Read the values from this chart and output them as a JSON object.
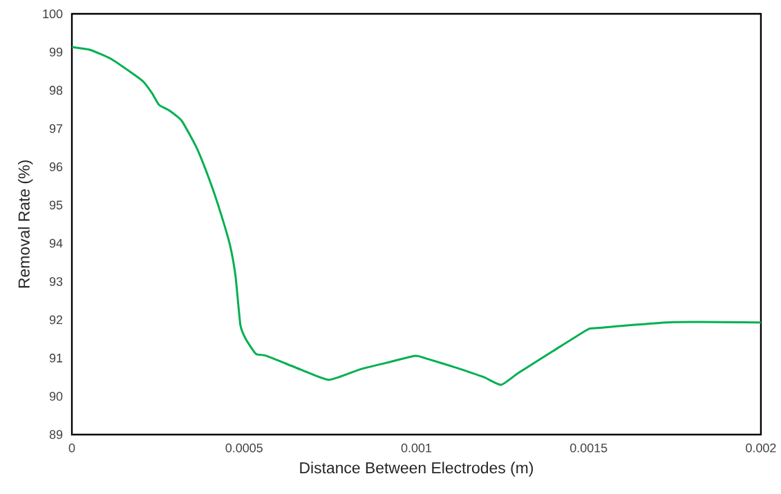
{
  "chart_data": {
    "type": "line",
    "xlabel": "Distance Between Electrodes (m)",
    "ylabel": "Removal Rate (%)",
    "x": [
      0,
      5.2e-05,
      0.000112,
      0.000173,
      0.000207,
      0.000233,
      0.000253,
      0.000283,
      0.000319,
      0.000363,
      0.000403,
      0.000433,
      0.000459,
      0.000475,
      0.000489,
      0.000504,
      0.000534,
      0.000564,
      0.000664,
      0.000746,
      0.000835,
      0.000915,
      0.000997,
      0.001035,
      0.001115,
      0.001196,
      0.001246,
      0.001296,
      0.001396,
      0.001496,
      0.001517,
      0.001747,
      0.002
    ],
    "series": [
      {
        "color": "#00b050",
        "values": [
          99.13,
          99.06,
          98.83,
          98.46,
          98.23,
          97.92,
          97.62,
          97.47,
          97.2,
          96.48,
          95.57,
          94.76,
          93.95,
          93.14,
          91.87,
          91.51,
          91.11,
          91.06,
          90.7,
          90.43,
          90.7,
          90.88,
          91.06,
          90.97,
          90.75,
          90.5,
          90.3,
          90.61,
          91.18,
          91.74,
          91.78,
          91.94,
          91.93
        ]
      }
    ],
    "xlim": [
      0,
      0.002
    ],
    "xticks": [
      0,
      0.0005,
      0.001,
      0.0015,
      0.002
    ],
    "ylim": [
      89,
      100
    ],
    "yticks": [
      89,
      90,
      91,
      92,
      93,
      94,
      95,
      96,
      97,
      98,
      99,
      100
    ]
  }
}
